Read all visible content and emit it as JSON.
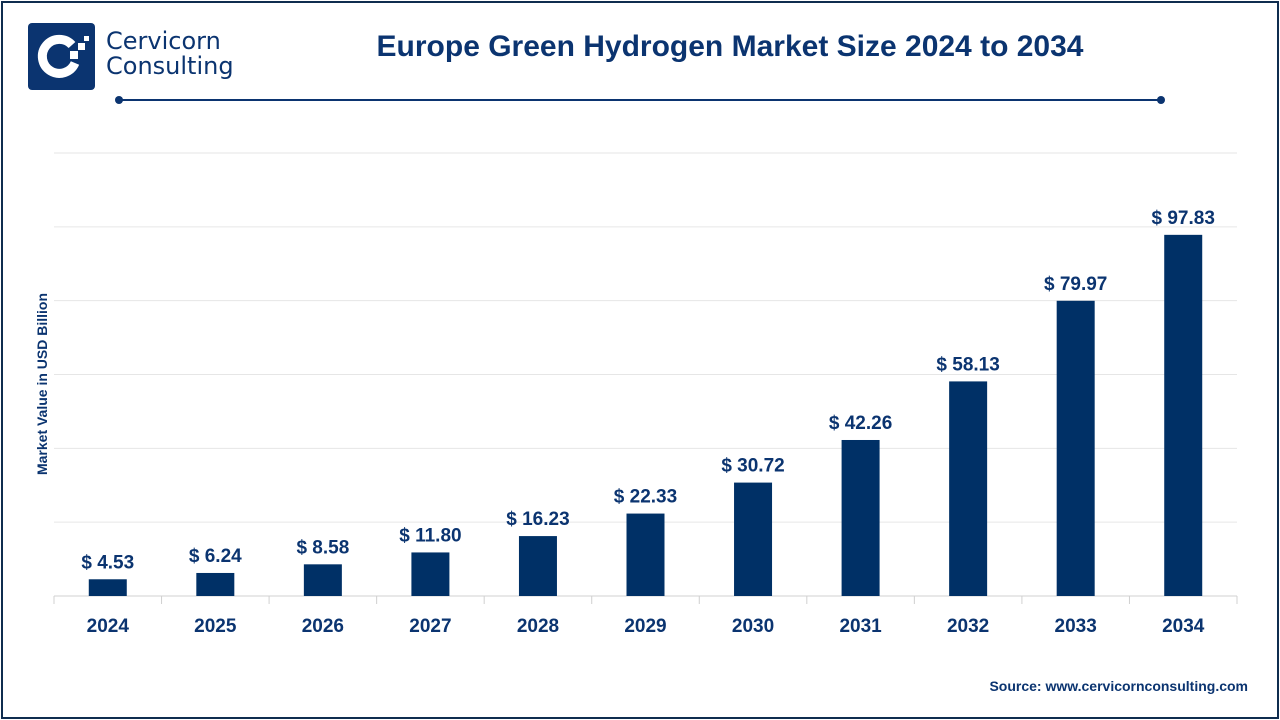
{
  "brand": {
    "line1": "Cervicorn",
    "line2": "Consulting"
  },
  "source": "Source: www.cervicornconsulting.com",
  "colors": {
    "bar": "#003066",
    "text": "#0b3470",
    "grid": "#e6e6e6"
  },
  "chart_data": {
    "type": "bar",
    "title": "Europe Green Hydrogen Market Size 2024 to 2034",
    "xlabel": "",
    "ylabel": "Market Value in USD Billion",
    "categories": [
      "2024",
      "2025",
      "2026",
      "2027",
      "2028",
      "2029",
      "2030",
      "2031",
      "2032",
      "2033",
      "2034"
    ],
    "values": [
      4.53,
      6.24,
      8.58,
      11.8,
      16.23,
      22.33,
      30.72,
      42.26,
      58.13,
      79.97,
      97.83
    ],
    "data_labels": [
      "$ 4.53",
      "$ 6.24",
      "$ 8.58",
      "$ 11.80",
      "$ 16.23",
      "$ 22.33",
      "$ 30.72",
      "$ 42.26",
      "$ 58.13",
      "$ 79.97",
      "$ 97.83"
    ],
    "ylim": [
      0,
      120
    ],
    "grid": true,
    "legend": "none"
  }
}
